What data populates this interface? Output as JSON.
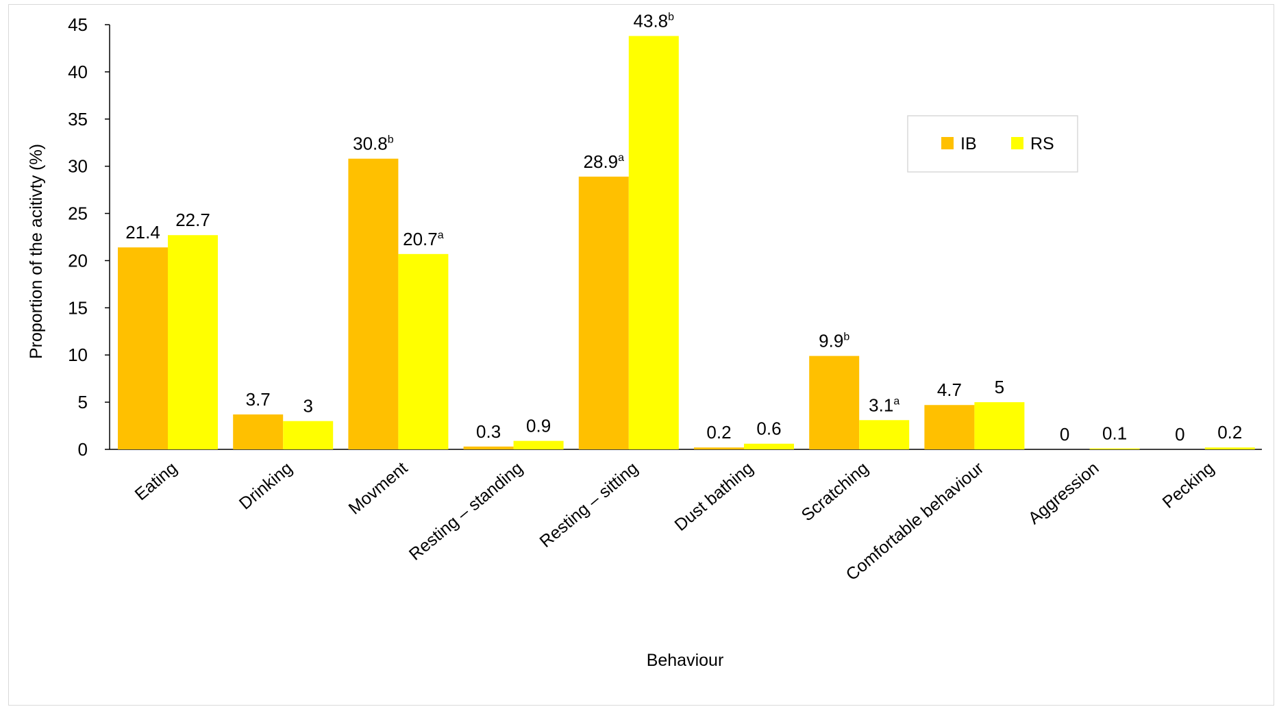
{
  "chart_data": {
    "type": "bar",
    "title": "",
    "xlabel": "Behaviour",
    "ylabel": "Proportion of the acitivty  (%)",
    "ylim": [
      0,
      45
    ],
    "yticks": [
      0,
      5,
      10,
      15,
      20,
      25,
      30,
      35,
      40,
      45
    ],
    "grid": false,
    "legend_position": "top-right",
    "categories": [
      "Eating",
      "Drinking",
      "Movment",
      "Resting – standing",
      "Resting – sitting",
      "Dust bathing",
      "Scratching",
      "Comfortable behaviour",
      "Aggression",
      "Pecking"
    ],
    "series": [
      {
        "name": "IB",
        "color": "#FFC000",
        "values": [
          21.4,
          3.7,
          30.8,
          0.3,
          28.9,
          0.2,
          9.9,
          4.7,
          0,
          0
        ],
        "labels": [
          "21.4",
          "3.7",
          "30.8",
          "0.3",
          "28.9",
          "0.2",
          "9.9",
          "4.7",
          "0",
          "0"
        ],
        "superscripts": [
          "",
          "",
          "b",
          "",
          "a",
          "",
          "b",
          "",
          "",
          ""
        ]
      },
      {
        "name": "RS",
        "color": "#FFFF00",
        "values": [
          22.7,
          3,
          20.7,
          0.9,
          43.8,
          0.6,
          3.1,
          5,
          0.1,
          0.2
        ],
        "labels": [
          "22.7",
          "3",
          "20.7",
          "0.9",
          "43.8",
          "0.6",
          "3.1",
          "5",
          "0.1",
          "0.2"
        ],
        "superscripts": [
          "",
          "",
          "a",
          "",
          "b",
          "",
          "a",
          "",
          "",
          ""
        ]
      }
    ]
  }
}
